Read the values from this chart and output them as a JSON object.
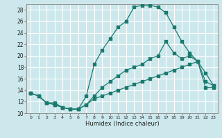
{
  "xlabel": "Humidex (Indice chaleur)",
  "ylabel": "",
  "bg_color": "#cce8ec",
  "grid_color": "#ffffff",
  "line_color": "#1a7a6e",
  "xlim": [
    -0.5,
    23.5
  ],
  "ylim": [
    10,
    29
  ],
  "xticks": [
    0,
    1,
    2,
    3,
    4,
    5,
    6,
    7,
    8,
    9,
    10,
    11,
    12,
    13,
    14,
    15,
    16,
    17,
    18,
    19,
    20,
    21,
    22,
    23
  ],
  "yticks": [
    10,
    12,
    14,
    16,
    18,
    20,
    22,
    24,
    26,
    28
  ],
  "line1_x": [
    0,
    1,
    2,
    3,
    4,
    5,
    6,
    7,
    8,
    9,
    10,
    11,
    12,
    13,
    14,
    15,
    16,
    17,
    18,
    19,
    20,
    21,
    22,
    23
  ],
  "line1_y": [
    13.5,
    13.0,
    11.8,
    11.8,
    11.0,
    10.7,
    10.7,
    13.0,
    18.5,
    21.0,
    23.0,
    25.0,
    26.0,
    28.5,
    28.8,
    28.8,
    28.5,
    27.5,
    25.0,
    22.5,
    20.5,
    19.0,
    17.0,
    14.8
  ],
  "line2_x": [
    0,
    1,
    2,
    3,
    4,
    5,
    6,
    7,
    8,
    9,
    10,
    11,
    12,
    13,
    14,
    15,
    16,
    17,
    18,
    19,
    20,
    21,
    22,
    23
  ],
  "line2_y": [
    13.5,
    13.0,
    11.8,
    11.5,
    11.0,
    10.7,
    10.7,
    11.5,
    13.0,
    14.5,
    15.5,
    16.5,
    17.5,
    18.0,
    18.5,
    19.5,
    20.0,
    22.5,
    20.5,
    19.5,
    20.0,
    19.0,
    15.5,
    14.8
  ],
  "line3_x": [
    0,
    1,
    2,
    3,
    4,
    5,
    6,
    7,
    8,
    9,
    10,
    11,
    12,
    13,
    14,
    15,
    16,
    17,
    18,
    19,
    20,
    21,
    22,
    23
  ],
  "line3_y": [
    13.5,
    13.0,
    11.8,
    11.5,
    11.0,
    10.7,
    10.7,
    11.5,
    12.5,
    13.0,
    13.5,
    14.0,
    14.5,
    15.0,
    15.5,
    16.0,
    16.5,
    17.0,
    17.5,
    18.0,
    18.5,
    19.0,
    14.5,
    14.5
  ]
}
